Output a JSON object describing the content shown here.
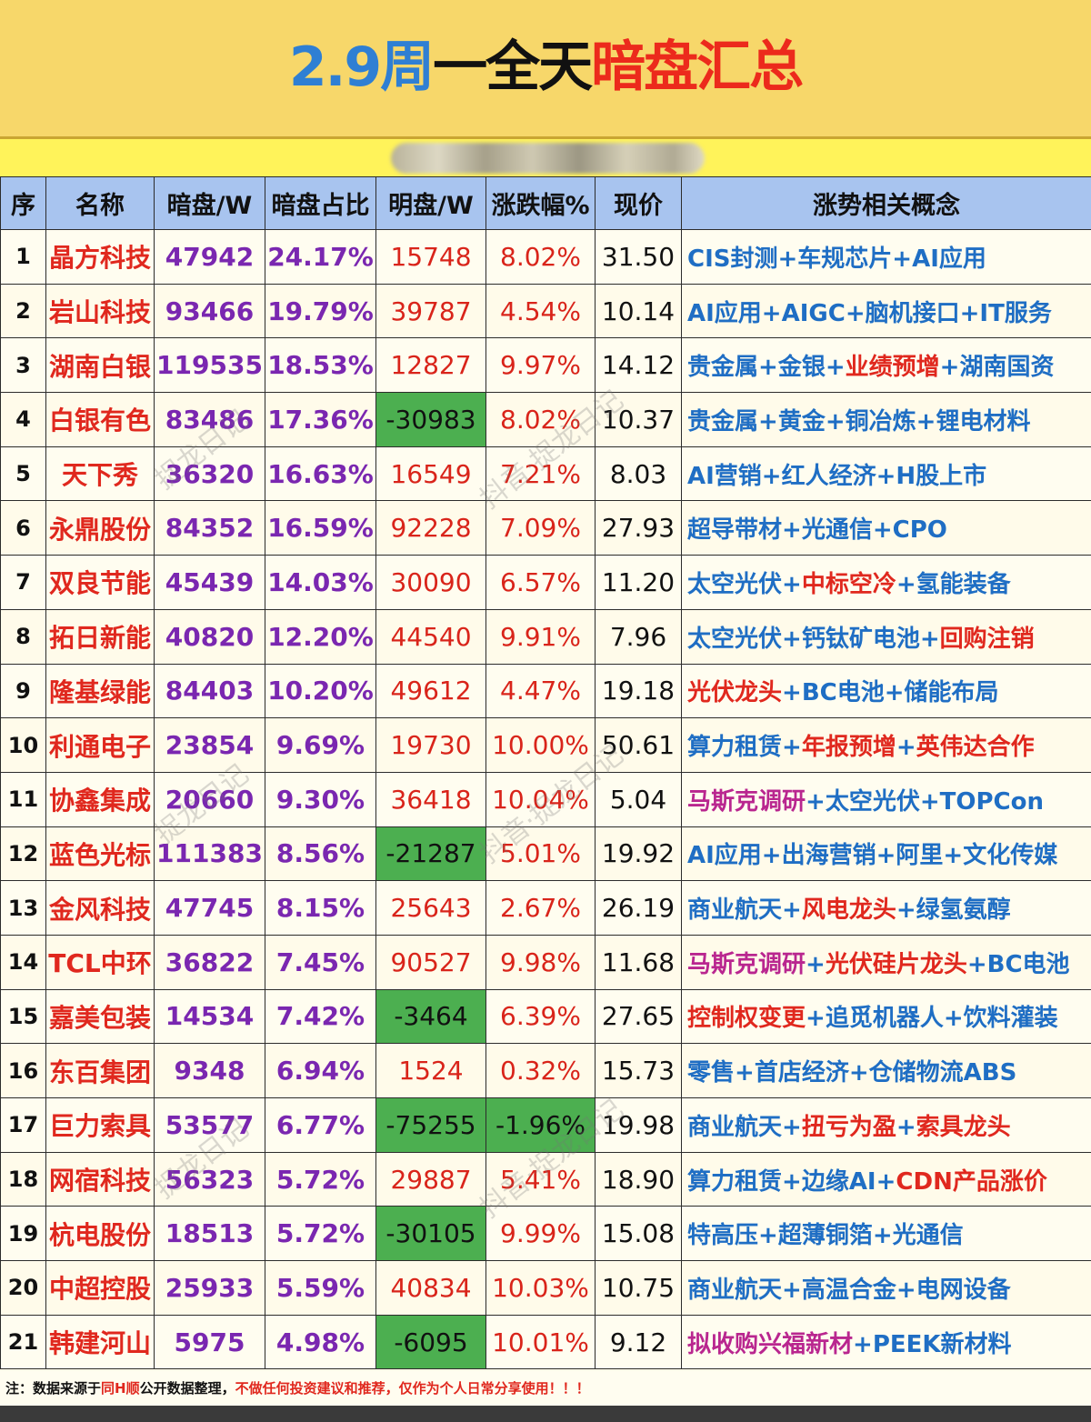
{
  "header": {
    "title_date": "2.9周",
    "title_day": "一全天",
    "title_main": "暗盘汇总"
  },
  "table": {
    "columns": [
      "序",
      "名称",
      "暗盘/W",
      "暗盘占比",
      "明盘/W",
      "涨跌幅%",
      "现价",
      "涨势相关概念"
    ],
    "rows": [
      {
        "seq": "1",
        "name": "晶方科技",
        "dark": "47942",
        "ratio": "24.17%",
        "open": "15748",
        "open_negative": false,
        "change": "8.02%",
        "change_negative": false,
        "price": "31.50",
        "concept": [
          {
            "text": "CIS封测",
            "color": "blue"
          },
          {
            "text": "+",
            "color": "blue"
          },
          {
            "text": "车规芯片",
            "color": "blue"
          },
          {
            "text": "+",
            "color": "blue"
          },
          {
            "text": "AI应用",
            "color": "blue"
          }
        ]
      },
      {
        "seq": "2",
        "name": "岩山科技",
        "dark": "93466",
        "ratio": "19.79%",
        "open": "39787",
        "open_negative": false,
        "change": "4.54%",
        "change_negative": false,
        "price": "10.14",
        "concept": [
          {
            "text": "AI应用",
            "color": "blue"
          },
          {
            "text": "+",
            "color": "blue"
          },
          {
            "text": "AIGC",
            "color": "blue"
          },
          {
            "text": "+",
            "color": "blue"
          },
          {
            "text": "脑机接口",
            "color": "blue"
          },
          {
            "text": "+",
            "color": "blue"
          },
          {
            "text": "IT服务",
            "color": "blue"
          }
        ]
      },
      {
        "seq": "3",
        "name": "湖南白银",
        "dark": "119535",
        "ratio": "18.53%",
        "open": "12827",
        "open_negative": false,
        "change": "9.97%",
        "change_negative": false,
        "price": "14.12",
        "concept": [
          {
            "text": "贵金属",
            "color": "blue"
          },
          {
            "text": "+",
            "color": "blue"
          },
          {
            "text": "金银",
            "color": "blue"
          },
          {
            "text": "+",
            "color": "blue"
          },
          {
            "text": "业绩预增",
            "color": "red"
          },
          {
            "text": "+",
            "color": "blue"
          },
          {
            "text": "湖南国资",
            "color": "blue"
          }
        ]
      },
      {
        "seq": "4",
        "name": "白银有色",
        "dark": "83486",
        "ratio": "17.36%",
        "open": "-30983",
        "open_negative": true,
        "change": "8.02%",
        "change_negative": false,
        "price": "10.37",
        "concept": [
          {
            "text": "贵金属",
            "color": "blue"
          },
          {
            "text": "+",
            "color": "blue"
          },
          {
            "text": "黄金",
            "color": "blue"
          },
          {
            "text": "+",
            "color": "blue"
          },
          {
            "text": "铜冶炼",
            "color": "blue"
          },
          {
            "text": "+",
            "color": "blue"
          },
          {
            "text": "锂电材料",
            "color": "blue"
          }
        ]
      },
      {
        "seq": "5",
        "name": "天下秀",
        "dark": "36320",
        "ratio": "16.63%",
        "open": "16549",
        "open_negative": false,
        "change": "7.21%",
        "change_negative": false,
        "price": "8.03",
        "concept": [
          {
            "text": "AI营销",
            "color": "blue"
          },
          {
            "text": "+",
            "color": "blue"
          },
          {
            "text": "红人经济",
            "color": "blue"
          },
          {
            "text": "+",
            "color": "blue"
          },
          {
            "text": "H股上市",
            "color": "blue"
          }
        ]
      },
      {
        "seq": "6",
        "name": "永鼎股份",
        "dark": "84352",
        "ratio": "16.59%",
        "open": "92228",
        "open_negative": false,
        "change": "7.09%",
        "change_negative": false,
        "price": "27.93",
        "concept": [
          {
            "text": "超导带材",
            "color": "blue"
          },
          {
            "text": "+",
            "color": "blue"
          },
          {
            "text": "光通信",
            "color": "blue"
          },
          {
            "text": "+",
            "color": "blue"
          },
          {
            "text": "CPO",
            "color": "blue"
          }
        ]
      },
      {
        "seq": "7",
        "name": "双良节能",
        "dark": "45439",
        "ratio": "14.03%",
        "open": "30090",
        "open_negative": false,
        "change": "6.57%",
        "change_negative": false,
        "price": "11.20",
        "concept": [
          {
            "text": "太空光伏",
            "color": "blue"
          },
          {
            "text": "+",
            "color": "blue"
          },
          {
            "text": "中标空冷",
            "color": "red"
          },
          {
            "text": "+",
            "color": "blue"
          },
          {
            "text": "氢能装备",
            "color": "blue"
          }
        ]
      },
      {
        "seq": "8",
        "name": "拓日新能",
        "dark": "40820",
        "ratio": "12.20%",
        "open": "44540",
        "open_negative": false,
        "change": "9.91%",
        "change_negative": false,
        "price": "7.96",
        "concept": [
          {
            "text": "太空光伏",
            "color": "blue"
          },
          {
            "text": "+",
            "color": "blue"
          },
          {
            "text": "钙钛矿电池",
            "color": "blue"
          },
          {
            "text": "+",
            "color": "blue"
          },
          {
            "text": "回购注销",
            "color": "red"
          }
        ]
      },
      {
        "seq": "9",
        "name": "隆基绿能",
        "dark": "84403",
        "ratio": "10.20%",
        "open": "49612",
        "open_negative": false,
        "change": "4.47%",
        "change_negative": false,
        "price": "19.18",
        "concept": [
          {
            "text": "光伏龙头",
            "color": "red"
          },
          {
            "text": "+",
            "color": "blue"
          },
          {
            "text": "BC电池",
            "color": "blue"
          },
          {
            "text": "+",
            "color": "blue"
          },
          {
            "text": "储能布局",
            "color": "blue"
          }
        ]
      },
      {
        "seq": "10",
        "name": "利通电子",
        "dark": "23854",
        "ratio": "9.69%",
        "open": "19730",
        "open_negative": false,
        "change": "10.00%",
        "change_negative": false,
        "price": "50.61",
        "concept": [
          {
            "text": "算力租赁",
            "color": "blue"
          },
          {
            "text": "+",
            "color": "blue"
          },
          {
            "text": "年报预增",
            "color": "red"
          },
          {
            "text": "+",
            "color": "blue"
          },
          {
            "text": "英伟达合作",
            "color": "red"
          }
        ]
      },
      {
        "seq": "11",
        "name": "协鑫集成",
        "dark": "20660",
        "ratio": "9.30%",
        "open": "36418",
        "open_negative": false,
        "change": "10.04%",
        "change_negative": false,
        "price": "5.04",
        "concept": [
          {
            "text": "马斯克调研",
            "color": "purple"
          },
          {
            "text": "+",
            "color": "blue"
          },
          {
            "text": "太空光伏",
            "color": "blue"
          },
          {
            "text": "+",
            "color": "blue"
          },
          {
            "text": "TOPCon",
            "color": "blue"
          }
        ]
      },
      {
        "seq": "12",
        "name": "蓝色光标",
        "dark": "111383",
        "ratio": "8.56%",
        "open": "-21287",
        "open_negative": true,
        "change": "5.01%",
        "change_negative": false,
        "price": "19.92",
        "concept": [
          {
            "text": "AI应用",
            "color": "blue"
          },
          {
            "text": "+",
            "color": "blue"
          },
          {
            "text": "出海营销",
            "color": "blue"
          },
          {
            "text": "+",
            "color": "blue"
          },
          {
            "text": "阿里",
            "color": "blue"
          },
          {
            "text": "+",
            "color": "blue"
          },
          {
            "text": "文化传媒",
            "color": "blue"
          }
        ]
      },
      {
        "seq": "13",
        "name": "金风科技",
        "dark": "47745",
        "ratio": "8.15%",
        "open": "25643",
        "open_negative": false,
        "change": "2.67%",
        "change_negative": false,
        "price": "26.19",
        "concept": [
          {
            "text": "商业航天",
            "color": "blue"
          },
          {
            "text": "+",
            "color": "blue"
          },
          {
            "text": "风电龙头",
            "color": "red"
          },
          {
            "text": "+",
            "color": "blue"
          },
          {
            "text": "绿氢氨醇",
            "color": "blue"
          }
        ]
      },
      {
        "seq": "14",
        "name": "TCL中环",
        "dark": "36822",
        "ratio": "7.45%",
        "open": "90527",
        "open_negative": false,
        "change": "9.98%",
        "change_negative": false,
        "price": "11.68",
        "concept": [
          {
            "text": "马斯克调研",
            "color": "purple"
          },
          {
            "text": "+",
            "color": "blue"
          },
          {
            "text": "光伏硅片龙头",
            "color": "red"
          },
          {
            "text": "+",
            "color": "blue"
          },
          {
            "text": "BC电池",
            "color": "blue"
          }
        ]
      },
      {
        "seq": "15",
        "name": "嘉美包装",
        "dark": "14534",
        "ratio": "7.42%",
        "open": "-3464",
        "open_negative": true,
        "change": "6.39%",
        "change_negative": false,
        "price": "27.65",
        "concept": [
          {
            "text": "控制权变更",
            "color": "red"
          },
          {
            "text": "+",
            "color": "blue"
          },
          {
            "text": "追觅机器人",
            "color": "blue"
          },
          {
            "text": "+",
            "color": "blue"
          },
          {
            "text": "饮料灌装",
            "color": "blue"
          }
        ]
      },
      {
        "seq": "16",
        "name": "东百集团",
        "dark": "9348",
        "ratio": "6.94%",
        "open": "1524",
        "open_negative": false,
        "change": "0.32%",
        "change_negative": false,
        "price": "15.73",
        "concept": [
          {
            "text": "零售",
            "color": "blue"
          },
          {
            "text": "+",
            "color": "blue"
          },
          {
            "text": "首店经济",
            "color": "blue"
          },
          {
            "text": "+",
            "color": "blue"
          },
          {
            "text": "仓储物流ABS",
            "color": "blue"
          }
        ]
      },
      {
        "seq": "17",
        "name": "巨力索具",
        "dark": "53577",
        "ratio": "6.77%",
        "open": "-75255",
        "open_negative": true,
        "change": "-1.96%",
        "change_negative": true,
        "price": "19.98",
        "concept": [
          {
            "text": "商业航天",
            "color": "blue"
          },
          {
            "text": "+",
            "color": "blue"
          },
          {
            "text": "扭亏为盈",
            "color": "red"
          },
          {
            "text": "+",
            "color": "blue"
          },
          {
            "text": "索具龙头",
            "color": "red"
          }
        ]
      },
      {
        "seq": "18",
        "name": "网宿科技",
        "dark": "56323",
        "ratio": "5.72%",
        "open": "29887",
        "open_negative": false,
        "change": "5.41%",
        "change_negative": false,
        "price": "18.90",
        "concept": [
          {
            "text": "算力租赁",
            "color": "blue"
          },
          {
            "text": "+",
            "color": "blue"
          },
          {
            "text": "边缘AI",
            "color": "blue"
          },
          {
            "text": "+",
            "color": "blue"
          },
          {
            "text": "CDN产品涨价",
            "color": "red"
          }
        ]
      },
      {
        "seq": "19",
        "name": "杭电股份",
        "dark": "18513",
        "ratio": "5.72%",
        "open": "-30105",
        "open_negative": true,
        "change": "9.99%",
        "change_negative": false,
        "price": "15.08",
        "concept": [
          {
            "text": "特高压",
            "color": "blue"
          },
          {
            "text": "+",
            "color": "blue"
          },
          {
            "text": "超薄铜箔",
            "color": "blue"
          },
          {
            "text": "+",
            "color": "blue"
          },
          {
            "text": "光通信",
            "color": "blue"
          }
        ]
      },
      {
        "seq": "20",
        "name": "中超控股",
        "dark": "25933",
        "ratio": "5.59%",
        "open": "40834",
        "open_negative": false,
        "change": "10.03%",
        "change_negative": false,
        "price": "10.75",
        "concept": [
          {
            "text": "商业航天",
            "color": "blue"
          },
          {
            "text": "+",
            "color": "blue"
          },
          {
            "text": "高温合金",
            "color": "blue"
          },
          {
            "text": "+",
            "color": "blue"
          },
          {
            "text": "电网设备",
            "color": "blue"
          }
        ]
      },
      {
        "seq": "21",
        "name": "韩建河山",
        "dark": "5975",
        "ratio": "4.98%",
        "open": "-6095",
        "open_negative": true,
        "change": "10.01%",
        "change_negative": false,
        "price": "9.12",
        "concept": [
          {
            "text": "拟收购兴福新材",
            "color": "purple"
          },
          {
            "text": "+",
            "color": "blue"
          },
          {
            "text": "PEEK新材料",
            "color": "blue"
          }
        ]
      }
    ]
  },
  "note": {
    "prefix": "注：数据来源于",
    "source": "同H顺",
    "middle": "公开数据整理，",
    "warning": "不做任何投资建议和推荐，仅作为个人日常分享使用！！！"
  },
  "colors": {
    "header_bg": "#f7d76a",
    "title_date": "#2f7fd3",
    "title_main": "#ec2a1c",
    "table_header_bg": "#a8c4ef",
    "negative_bg": "#4caf50",
    "name_red": "#e0281e",
    "value_purple": "#7a27b0",
    "concept_blue": "#1f6ec4"
  }
}
